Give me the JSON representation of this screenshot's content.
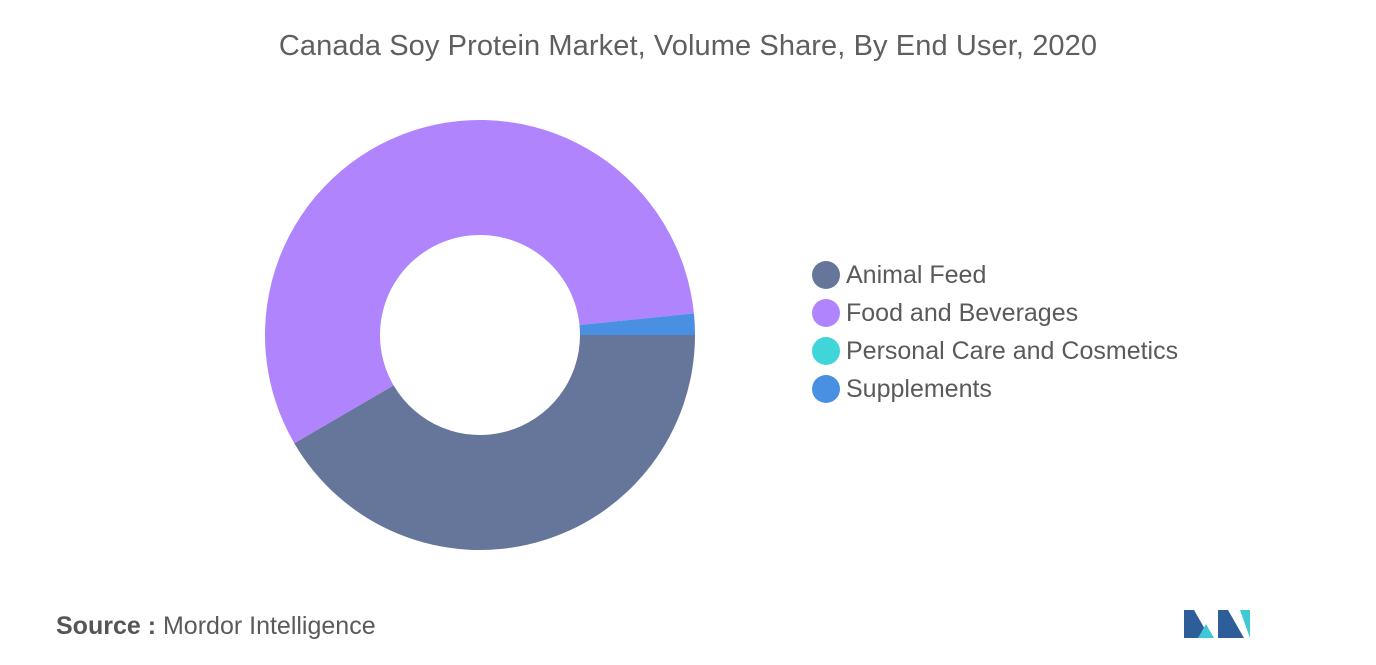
{
  "chart_data": {
    "type": "pie",
    "title": "Canada Soy Protein Market, Volume Share, By End User, 2020",
    "categories": [
      "Animal Feed",
      "Food and Beverages",
      "Personal Care and Cosmetics",
      "Supplements"
    ],
    "values": [
      41.6,
      56.8,
      0.0,
      1.6
    ],
    "unit": "%",
    "colors": [
      "#65769a",
      "#b084fc",
      "#3fd5d9",
      "#4a90e2"
    ],
    "donut": true,
    "legend_position": "right"
  },
  "footer": {
    "source_label": "Source :",
    "source_value": "Mordor Intelligence"
  },
  "logo": {
    "icon": "mordor-intelligence-logo",
    "colors": [
      "#1c3f6e",
      "#3fc8d6"
    ]
  }
}
